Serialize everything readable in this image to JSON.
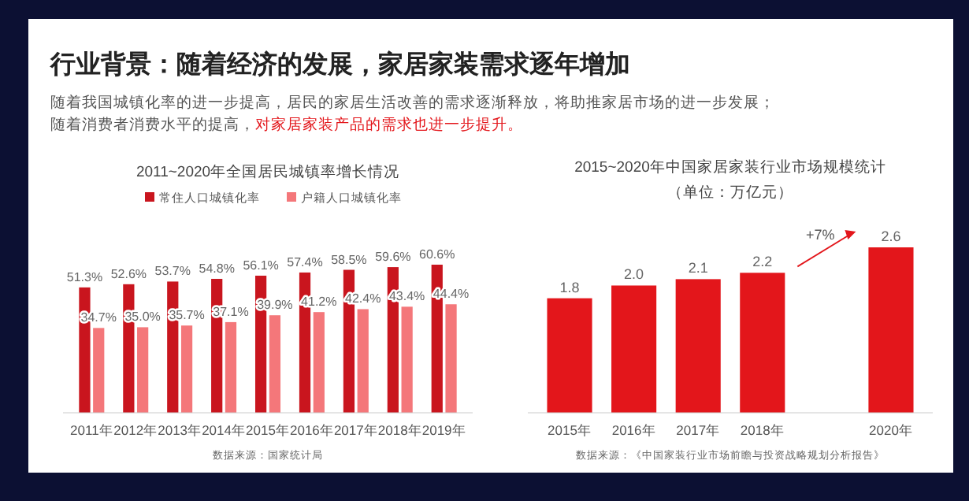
{
  "chart_data": [
    {
      "type": "other",
      "title": "行业背景：随着经济的发展，家居家装需求逐年增加",
      "annotations": [
        "随着我国城镇化率的进一步提高，居民的家居生活改善的需求逐渐释放，将助推家居市场的进一步发展；",
        "随着消费者消费水平的提高，",
        "对家居家装产品的需求也进一步提升。"
      ]
    },
    {
      "type": "bar",
      "title": "2011~2020年全国居民城镇率增长情况",
      "categories": [
        "2011年",
        "2012年",
        "2013年",
        "2014年",
        "2015年",
        "2016年",
        "2017年",
        "2018年",
        "2019年"
      ],
      "legend": "top",
      "series": [
        {
          "name": "常住人口城镇化率",
          "color": "#c9151e",
          "values": [
            51.3,
            52.6,
            53.7,
            54.8,
            56.1,
            57.4,
            58.5,
            59.6,
            60.6
          ],
          "value_labels": [
            "51.3%",
            "52.6%",
            "53.7%",
            "54.8%",
            "56.1%",
            "57.4%",
            "58.5%",
            "59.6%",
            "60.6%"
          ]
        },
        {
          "name": "户籍人口城镇化率",
          "color": "#f4777a",
          "values": [
            34.7,
            35.0,
            35.7,
            37.1,
            39.9,
            41.2,
            42.4,
            43.4,
            44.4
          ],
          "value_labels": [
            "34.7%",
            "35.0%",
            "35.7%",
            "37.1%",
            "39.9%",
            "41.2%",
            "42.4%",
            "43.4%",
            "44.4%"
          ]
        }
      ],
      "annotations": [
        "数据来源：国家统计局"
      ]
    },
    {
      "type": "bar",
      "title": "2015~2020年中国家居家装行业市场规模统计",
      "subtitle": "（单位：万亿元）",
      "categories": [
        "2015年",
        "2016年",
        "2017年",
        "2018年",
        null,
        "2020年"
      ],
      "values": [
        1.8,
        2.0,
        2.1,
        2.2,
        null,
        2.6
      ],
      "value_labels": [
        "1.8",
        "2.0",
        "2.1",
        "2.2",
        null,
        "2.6"
      ],
      "color": "#e3161b",
      "annotations": [
        "+7%",
        "数据来源：《中国家装行业市场前瞻与投资战略规划分析报告》"
      ]
    }
  ]
}
